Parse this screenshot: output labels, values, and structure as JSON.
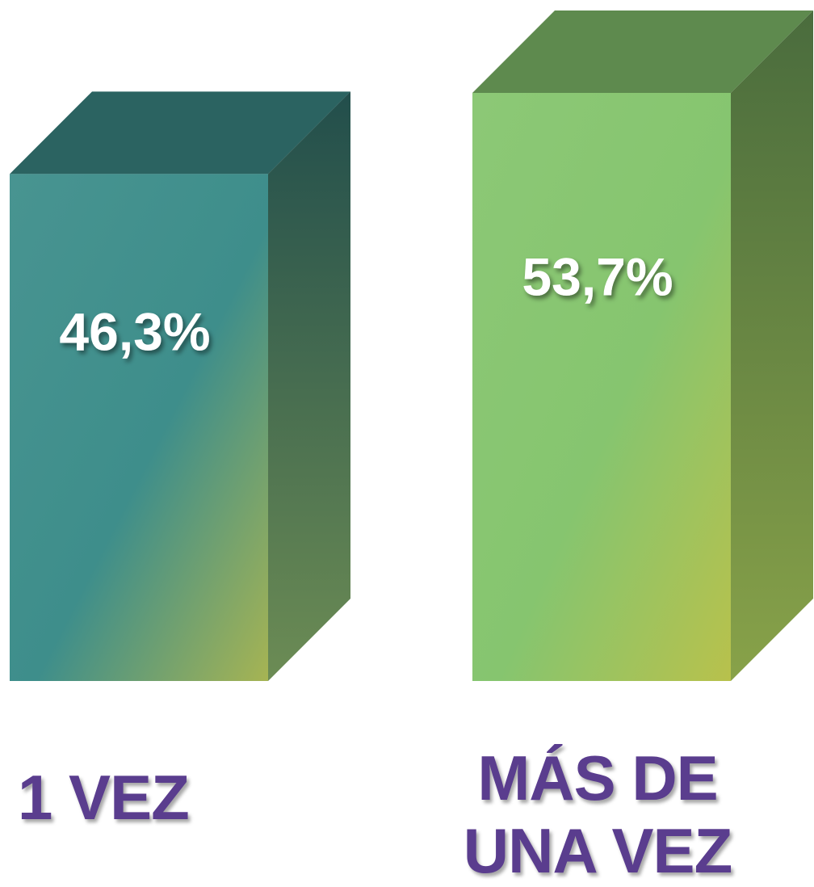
{
  "chart_data": {
    "type": "bar3d",
    "categories": [
      "1 VEZ",
      "MÁS DE UNA VEZ"
    ],
    "values": [
      46.3,
      53.7
    ],
    "value_labels": [
      "46,3%",
      "53,7%"
    ],
    "colors": [
      "#3e8e8b",
      "#86c56f"
    ]
  }
}
